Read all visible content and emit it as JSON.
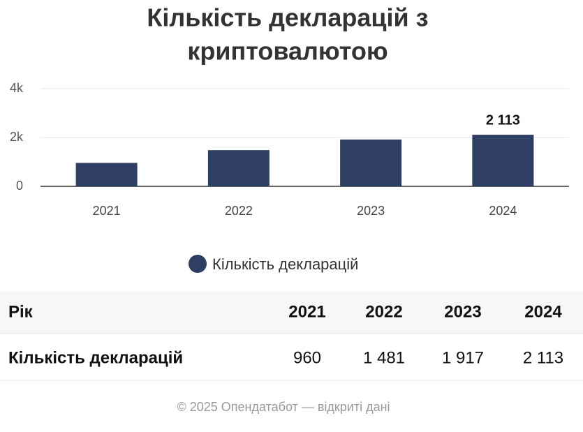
{
  "chart_data": {
    "type": "bar",
    "title": [
      "Кількість декларацій з",
      "криптовалютою"
    ],
    "categories": [
      "2021",
      "2022",
      "2023",
      "2024"
    ],
    "series": [
      {
        "name": "Кількість декларацій",
        "color": "#2e3f63",
        "values": [
          960,
          1481,
          1917,
          2113
        ],
        "value_labels": [
          null,
          null,
          null,
          "2 113"
        ]
      }
    ],
    "ylim": [
      0,
      4000
    ],
    "yticks": [
      0,
      {
        "value": 2000,
        "label": "2k"
      },
      {
        "value": 4000,
        "label": "4k"
      }
    ],
    "grid": true
  },
  "table": {
    "header": [
      "Рік",
      "2021",
      "2022",
      "2023",
      "2024"
    ],
    "rows": [
      [
        "Кількість декларацій",
        "960",
        "1 481",
        "1 917",
        "2 113"
      ]
    ]
  },
  "footer": "© 2025 Опендатабот — відкриті дані"
}
